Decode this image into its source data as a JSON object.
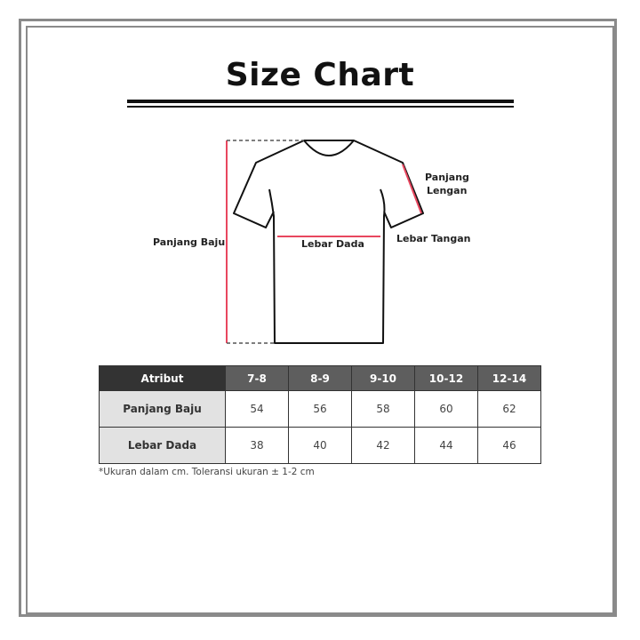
{
  "title": "Size Chart",
  "diagram": {
    "labels": {
      "panjang_baju": "Panjang Baju",
      "lebar_dada": "Lebar Dada",
      "panjang_lengan_1": "Panjang",
      "panjang_lengan_2": "Lengan",
      "lebar_tangan": "Lebar Tangan"
    },
    "measure_color": "#e8475f"
  },
  "table": {
    "header": [
      "Atribut",
      "7-8",
      "8-9",
      "9-10",
      "10-12",
      "12-14"
    ],
    "rows": [
      {
        "label": "Panjang Baju",
        "values": [
          "54",
          "56",
          "58",
          "60",
          "62"
        ]
      },
      {
        "label": "Lebar Dada",
        "values": [
          "38",
          "40",
          "42",
          "44",
          "46"
        ]
      }
    ]
  },
  "note": "*Ukuran dalam cm. Toleransi ukuran ± 1-2 cm"
}
